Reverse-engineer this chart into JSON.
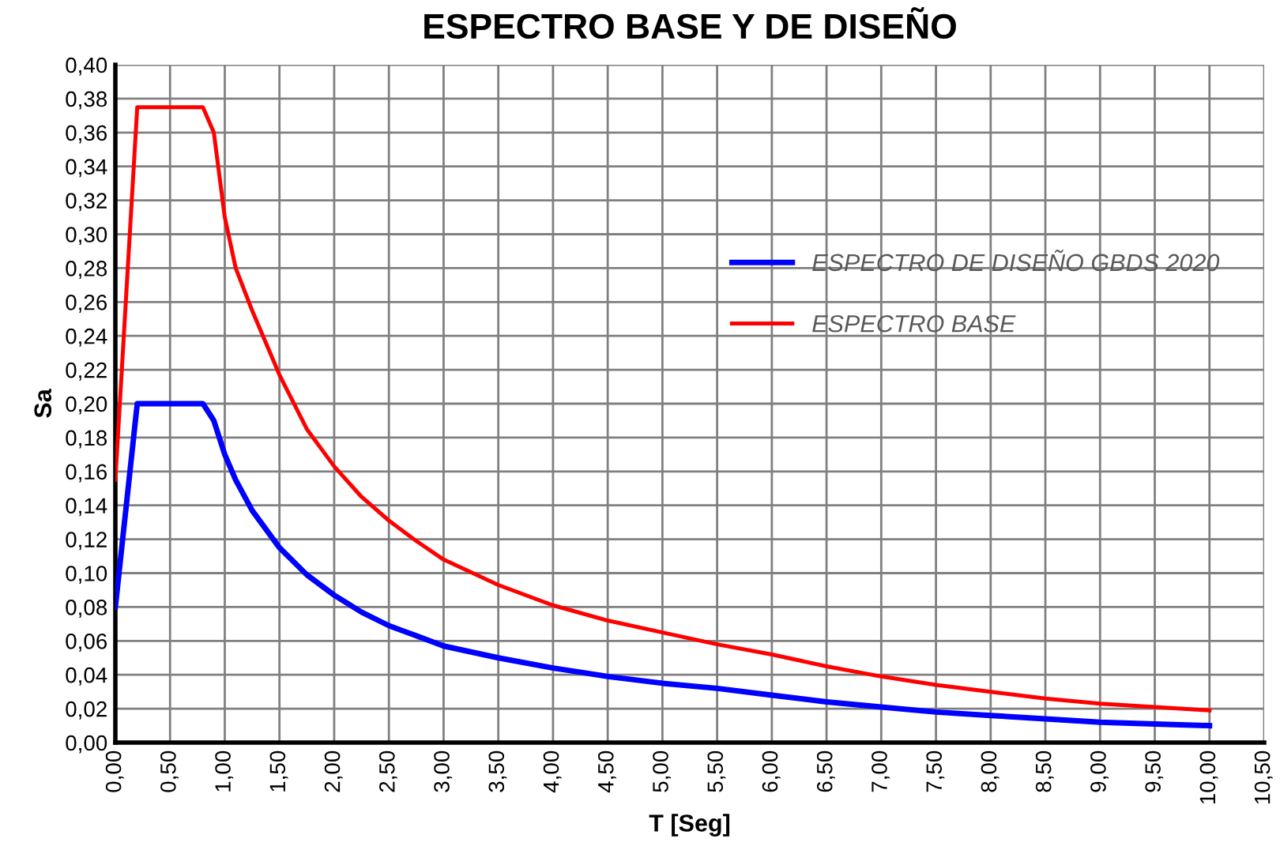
{
  "chart_data": {
    "type": "line",
    "title": "ESPECTRO BASE Y DE DISEÑO",
    "xlabel": "T [Seg]",
    "ylabel": "Sa",
    "xlim": [
      0,
      10.5
    ],
    "xticks": [
      {
        "value": 0,
        "label": "0,00"
      },
      {
        "value": 0.5,
        "label": "0,50"
      },
      {
        "value": 1,
        "label": "1,00"
      },
      {
        "value": 1.5,
        "label": "1,50"
      },
      {
        "value": 2,
        "label": "2,00"
      },
      {
        "value": 2.5,
        "label": "2,50"
      },
      {
        "value": 3,
        "label": "3,00"
      },
      {
        "value": 3.5,
        "label": "3,50"
      },
      {
        "value": 4,
        "label": "4,00"
      },
      {
        "value": 4.5,
        "label": "4,50"
      },
      {
        "value": 5,
        "label": "5,00"
      },
      {
        "value": 5.5,
        "label": "5,50"
      },
      {
        "value": 6,
        "label": "6,00"
      },
      {
        "value": 6.5,
        "label": "6,50"
      },
      {
        "value": 7,
        "label": "7,00"
      },
      {
        "value": 7.5,
        "label": "7,50"
      },
      {
        "value": 8,
        "label": "8,00"
      },
      {
        "value": 8.5,
        "label": "8,50"
      },
      {
        "value": 9,
        "label": "9,00"
      },
      {
        "value": 9.5,
        "label": "9,50"
      },
      {
        "value": 10,
        "label": "10,00"
      },
      {
        "value": 10.5,
        "label": "10,50"
      }
    ],
    "ylim": [
      0,
      0.4
    ],
    "yticks": [
      {
        "value": 0,
        "label": "0,00"
      },
      {
        "value": 0.02,
        "label": "0,02"
      },
      {
        "value": 0.04,
        "label": "0,04"
      },
      {
        "value": 0.06,
        "label": "0,06"
      },
      {
        "value": 0.08,
        "label": "0,08"
      },
      {
        "value": 0.1,
        "label": "0,10"
      },
      {
        "value": 0.12,
        "label": "0,12"
      },
      {
        "value": 0.14,
        "label": "0,14"
      },
      {
        "value": 0.16,
        "label": "0,16"
      },
      {
        "value": 0.18,
        "label": "0,18"
      },
      {
        "value": 0.2,
        "label": "0,20"
      },
      {
        "value": 0.22,
        "label": "0,22"
      },
      {
        "value": 0.24,
        "label": "0,24"
      },
      {
        "value": 0.26,
        "label": "0,26"
      },
      {
        "value": 0.28,
        "label": "0,28"
      },
      {
        "value": 0.3,
        "label": "0,30"
      },
      {
        "value": 0.32,
        "label": "0,32"
      },
      {
        "value": 0.34,
        "label": "0,34"
      },
      {
        "value": 0.36,
        "label": "0,36"
      },
      {
        "value": 0.38,
        "label": "0,38"
      },
      {
        "value": 0.4,
        "label": "0,40"
      }
    ],
    "grid": true,
    "legend": "right",
    "marker": "none",
    "line_style": "solid",
    "x": [
      0,
      0.2,
      0.8,
      0.9,
      1.0,
      1.1,
      1.25,
      1.5,
      1.75,
      2.0,
      2.25,
      2.5,
      2.75,
      3.0,
      3.5,
      4.0,
      4.5,
      5.0,
      5.5,
      6.0,
      6.5,
      7.0,
      7.5,
      8.0,
      8.5,
      9.0,
      9.5,
      10.0
    ],
    "series": [
      {
        "name": "ESPECTRO DE DISEÑO GBDS 2020",
        "color": "#0000ff",
        "values": [
          0.08,
          0.2,
          0.2,
          0.19,
          0.17,
          0.155,
          0.137,
          0.115,
          0.099,
          0.087,
          0.077,
          0.069,
          0.063,
          0.057,
          0.05,
          0.044,
          0.039,
          0.035,
          0.032,
          0.028,
          0.024,
          0.021,
          0.018,
          0.016,
          0.014,
          0.012,
          0.011,
          0.01
        ]
      },
      {
        "name": "ESPECTRO BASE",
        "color": "#ff0000",
        "values": [
          0.155,
          0.375,
          0.375,
          0.36,
          0.31,
          0.28,
          0.255,
          0.217,
          0.185,
          0.163,
          0.145,
          0.131,
          0.119,
          0.108,
          0.093,
          0.081,
          0.072,
          0.065,
          0.058,
          0.052,
          0.045,
          0.039,
          0.034,
          0.03,
          0.026,
          0.023,
          0.021,
          0.019
        ]
      }
    ]
  }
}
